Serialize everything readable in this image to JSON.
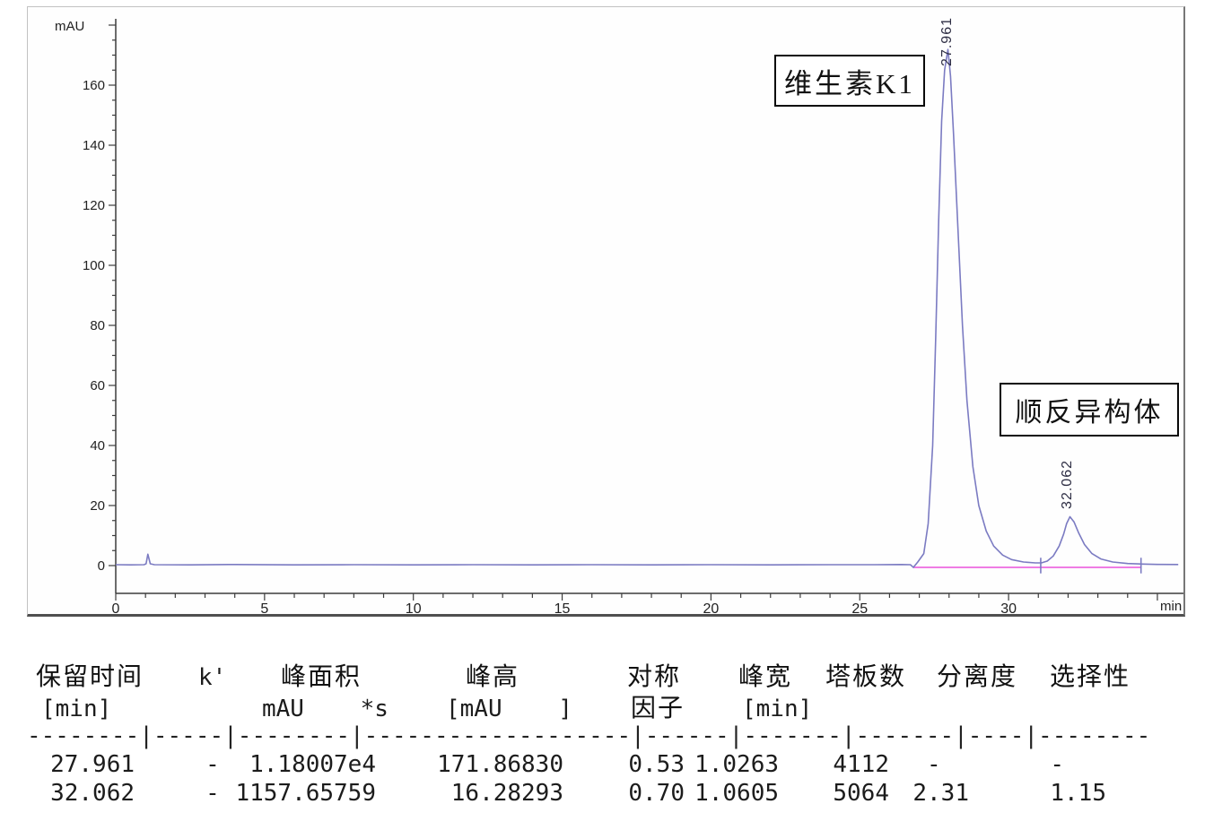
{
  "chart": {
    "y_title": "mAU",
    "x_title": "min",
    "y_ticks": [
      0,
      20,
      40,
      60,
      80,
      100,
      120,
      140,
      160
    ],
    "x_ticks": [
      0,
      5,
      10,
      15,
      20,
      25,
      30
    ],
    "peak_labels": [
      {
        "text": "27.961"
      },
      {
        "text": "32.062"
      }
    ],
    "annotations": [
      {
        "text": "维生素K1"
      },
      {
        "text": "顺反异构体"
      }
    ]
  },
  "chart_data": {
    "type": "line",
    "xlabel": "min",
    "ylabel": "mAU",
    "xlim": [
      0,
      35.8
    ],
    "ylim": [
      -5,
      182
    ],
    "grid": false,
    "series": [
      {
        "name": "detector-signal",
        "color": "#7b7bc2",
        "points": [
          [
            0,
            0.3
          ],
          [
            0.5,
            0.25
          ],
          [
            0.95,
            0.3
          ],
          [
            1.02,
            0.6
          ],
          [
            1.08,
            3.8
          ],
          [
            1.16,
            0.6
          ],
          [
            1.3,
            0.3
          ],
          [
            2.5,
            0.25
          ],
          [
            4,
            0.35
          ],
          [
            6,
            0.25
          ],
          [
            8,
            0.3
          ],
          [
            10,
            0.25
          ],
          [
            12,
            0.3
          ],
          [
            14,
            0.25
          ],
          [
            16,
            0.3
          ],
          [
            18,
            0.25
          ],
          [
            20,
            0.3
          ],
          [
            22,
            0.25
          ],
          [
            24,
            0.3
          ],
          [
            25.5,
            0.3
          ],
          [
            26.4,
            0.35
          ],
          [
            26.7,
            0.3
          ],
          [
            26.8,
            -0.6
          ],
          [
            26.95,
            1.2
          ],
          [
            27.15,
            4
          ],
          [
            27.3,
            14
          ],
          [
            27.45,
            40
          ],
          [
            27.55,
            75
          ],
          [
            27.65,
            115
          ],
          [
            27.75,
            148
          ],
          [
            27.85,
            165
          ],
          [
            27.961,
            171.87
          ],
          [
            28.05,
            163
          ],
          [
            28.15,
            144
          ],
          [
            28.3,
            112
          ],
          [
            28.45,
            80
          ],
          [
            28.6,
            55
          ],
          [
            28.8,
            33
          ],
          [
            29.0,
            20
          ],
          [
            29.25,
            11.5
          ],
          [
            29.5,
            6.5
          ],
          [
            29.8,
            3.5
          ],
          [
            30.1,
            2
          ],
          [
            30.5,
            1.2
          ],
          [
            30.9,
            0.9
          ],
          [
            31.1,
            0.9
          ],
          [
            31.3,
            1.5
          ],
          [
            31.5,
            3.2
          ],
          [
            31.7,
            6.5
          ],
          [
            31.85,
            10.5
          ],
          [
            31.95,
            14
          ],
          [
            32.062,
            16.28
          ],
          [
            32.2,
            14.5
          ],
          [
            32.35,
            11
          ],
          [
            32.55,
            7
          ],
          [
            32.8,
            4
          ],
          [
            33.1,
            2.2
          ],
          [
            33.5,
            1.2
          ],
          [
            34.0,
            0.7
          ],
          [
            34.5,
            0.5
          ],
          [
            35.0,
            0.4
          ],
          [
            35.7,
            0.35
          ]
        ]
      },
      {
        "name": "integration-baseline",
        "color": "#ef7ce4",
        "points": [
          [
            26.8,
            -0.6
          ],
          [
            34.45,
            -0.6
          ]
        ]
      }
    ],
    "integration_marks": [
      31.08,
      34.45
    ],
    "peaks": [
      {
        "rt": "27.961",
        "height_mAU": 171.8683,
        "annotation": "维生素K1"
      },
      {
        "rt": "32.062",
        "height_mAU": 16.28293,
        "annotation": "顺反异构体"
      }
    ]
  },
  "table": {
    "header_row1": [
      "保留时间",
      "k'",
      "峰面积",
      "峰高",
      "对称",
      "峰宽",
      "塔板数",
      "分离度",
      "选择性"
    ],
    "header_row2": {
      "c1": "[min]",
      "c3": "mAU    *s",
      "c4": "[mAU    ]",
      "c5": "因子",
      "c6": "[min]"
    },
    "separator": "--------|-----|--------|-------------------|------|-------|-------|----|--------",
    "rows": [
      {
        "c1": "27.961",
        "c2": "-",
        "c3": "1.18007e4",
        "c4": "171.86830",
        "c5": "0.53",
        "c6": "1.0263",
        "c7": "4112",
        "c8": "-  ",
        "c9": "-   "
      },
      {
        "c1": "32.062",
        "c2": "-",
        "c3": "1157.65759",
        "c4": "16.28293",
        "c5": "0.70",
        "c6": "1.0605",
        "c7": "5064",
        "c8": "2.31",
        "c9": "1.15"
      }
    ]
  }
}
